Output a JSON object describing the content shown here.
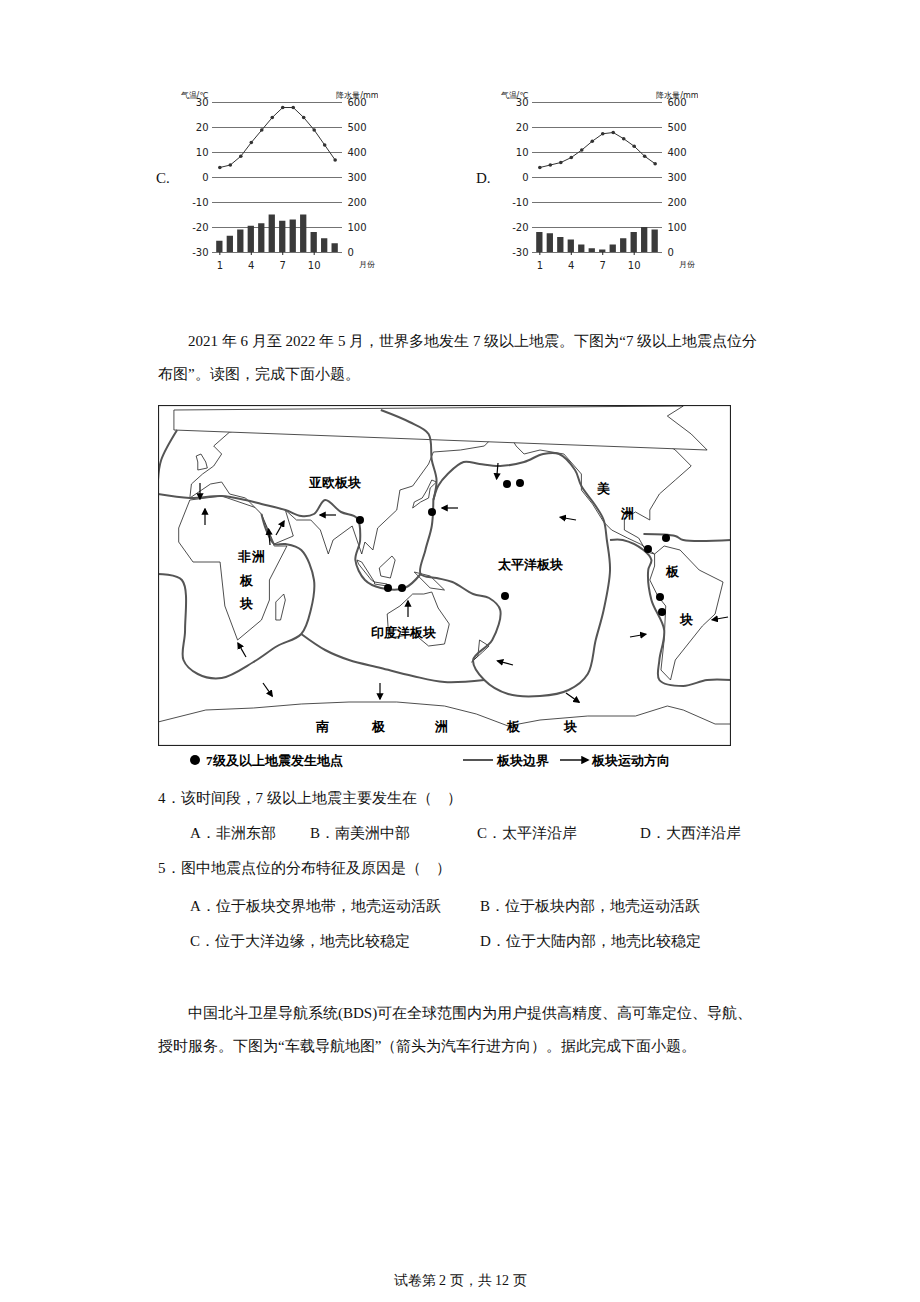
{
  "chart_data": [
    {
      "type": "climate",
      "label": "C.",
      "ylabel": "气温/℃",
      "y2label": "降水量/mm",
      "xlabel": "月份",
      "x": [
        1,
        2,
        3,
        4,
        5,
        6,
        7,
        8,
        9,
        10,
        11,
        12
      ],
      "xlim": [
        0.3,
        12.7
      ],
      "xticks": [
        1,
        4,
        7,
        10
      ],
      "ylim": [
        -30,
        30
      ],
      "yticks": [
        -30,
        -20,
        -10,
        0,
        10,
        20,
        30
      ],
      "y2lim": [
        0,
        600
      ],
      "y2ticks": [
        0,
        100,
        200,
        300,
        400,
        500,
        600
      ],
      "grid": true,
      "series": [
        {
          "type": "line",
          "marker": "circle",
          "color": "#333333",
          "values": [
            4,
            5,
            8.5,
            14,
            19,
            24,
            28,
            28,
            24,
            19,
            13,
            7
          ]
        },
        {
          "type": "bar",
          "axis": "y2",
          "color": "#3a3a3a",
          "values": [
            45,
            65,
            90,
            105,
            115,
            150,
            125,
            130,
            150,
            80,
            55,
            35
          ]
        }
      ]
    },
    {
      "type": "climate",
      "label": "D.",
      "ylabel": "气温/℃",
      "y2label": "降水量/mm",
      "xlabel": "月份",
      "x": [
        1,
        2,
        3,
        4,
        5,
        6,
        7,
        8,
        9,
        10,
        11,
        12
      ],
      "xlim": [
        0.3,
        12.7
      ],
      "xticks": [
        1,
        4,
        7,
        10
      ],
      "ylim": [
        -30,
        30
      ],
      "yticks": [
        -30,
        -20,
        -10,
        0,
        10,
        20,
        30
      ],
      "y2lim": [
        0,
        600
      ],
      "y2ticks": [
        0,
        100,
        200,
        300,
        400,
        500,
        600
      ],
      "grid": true,
      "series": [
        {
          "type": "line",
          "marker": "circle",
          "color": "#333333",
          "values": [
            4,
            5,
            6,
            8,
            11,
            14.5,
            17.5,
            18,
            15.5,
            12.5,
            8.5,
            5.5
          ]
        },
        {
          "type": "bar",
          "axis": "y2",
          "color": "#3a3a3a",
          "values": [
            80,
            75,
            60,
            50,
            30,
            15,
            10,
            30,
            55,
            80,
            100,
            90
          ]
        }
      ]
    }
  ],
  "passage1": "2021 年 6 月至 2022 年 5 月，世界多地发生 7 级以上地震。下图为“7 级以上地震点位分布图”。读图，完成下面小题。",
  "map": {
    "plate_labels": {
      "eurasian": "亚欧板块",
      "african": "非洲板块",
      "american": "美洲板块",
      "pacific": "太平洋板块",
      "indian": "印度洋板块",
      "antarctic": "南极洲板块"
    },
    "legend": {
      "earthquake": "7级及以上地震发生地点",
      "boundary": "板块边界",
      "motion": "板块运动方向"
    }
  },
  "questions": [
    {
      "stem": "4．该时间段，7 级以上地震主要发生在（　）",
      "choices": [
        "A．非洲东部",
        "B．南美洲中部",
        "C．太平洋沿岸",
        "D．大西洋沿岸"
      ]
    },
    {
      "stem": "5．图中地震点位的分布特征及原因是（　）",
      "choices": [
        "A．位于板块交界地带，地壳运动活跃",
        "B．位于板块内部，地壳运动活跃",
        "C．位于大洋边缘，地壳比较稳定",
        "D．位于大陆内部，地壳比较稳定"
      ]
    }
  ],
  "passage2": "中国北斗卫星导航系统(BDS)可在全球范围内为用户提供高精度、高可靠定位、导航、授时服务。下图为“车载导航地图”（箭头为汽车行进方向）。据此完成下面小题。",
  "footer": "试卷第 2 页，共 12 页"
}
